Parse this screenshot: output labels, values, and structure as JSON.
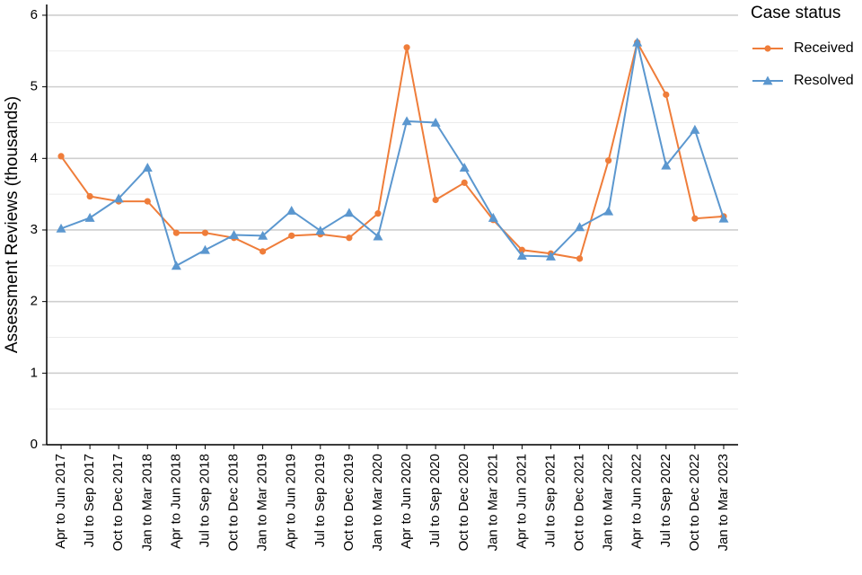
{
  "chart_data": {
    "type": "line",
    "y_label": "Assessment Reviews (thousands)",
    "legend_title": "Case status",
    "legend_position": "right",
    "grid": true,
    "categories": [
      "Apr to Jun 2017",
      "Jul to Sep 2017",
      "Oct to Dec 2017",
      "Jan to Mar 2018",
      "Apr to Jun 2018",
      "Jul to Sep 2018",
      "Oct to Dec 2018",
      "Jan to Mar 2019",
      "Apr to Jun 2019",
      "Jul to Sep 2019",
      "Oct to Dec 2019",
      "Jan to Mar 2020",
      "Apr to Jun 2020",
      "Jul to Sep 2020",
      "Oct to Dec 2020",
      "Jan to Mar 2021",
      "Apr to Jun 2021",
      "Jul to Sep 2021",
      "Oct to Dec 2021",
      "Jan to Mar 2022",
      "Apr to Jun 2022",
      "Jul to Sep 2022",
      "Oct to Dec 2022",
      "Jan to Mar 2023"
    ],
    "series": [
      {
        "name": "Received",
        "color": "#ef7d3a",
        "marker": "circle",
        "values": [
          4.03,
          3.47,
          3.4,
          3.4,
          2.96,
          2.96,
          2.89,
          2.7,
          2.92,
          2.94,
          2.89,
          3.23,
          5.55,
          3.42,
          3.66,
          3.14,
          2.72,
          2.67,
          2.6,
          3.97,
          5.62,
          4.89,
          3.16,
          3.19
        ]
      },
      {
        "name": "Resolved",
        "color": "#5b97cf",
        "marker": "triangle",
        "values": [
          3.02,
          3.17,
          3.44,
          3.87,
          2.5,
          2.72,
          2.93,
          2.92,
          3.27,
          2.99,
          3.24,
          2.91,
          4.52,
          4.5,
          3.87,
          3.17,
          2.64,
          2.63,
          3.04,
          3.26,
          5.62,
          3.9,
          4.4,
          3.16
        ]
      }
    ],
    "ylim": [
      0,
      6.15
    ],
    "yticks": [
      0,
      1,
      2,
      3,
      4,
      5,
      6
    ]
  }
}
